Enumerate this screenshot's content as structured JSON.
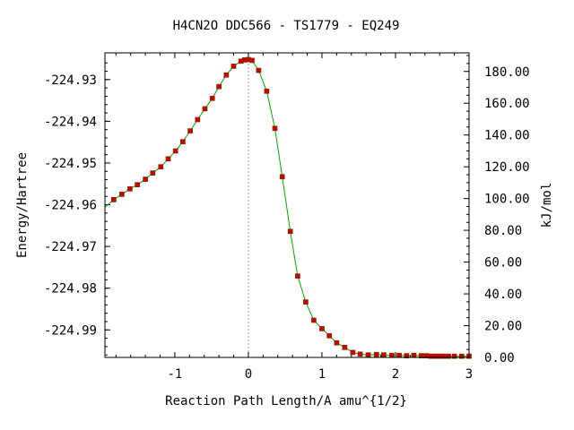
{
  "chart_data": {
    "type": "line",
    "title": "H4CN2O   DDC566 - TS1779 - EQ249",
    "xlabel": "Reaction Path Length/A amu^{1/2}",
    "ylabel": "Energy/Hartree",
    "ylabel_right": "kJ/mol",
    "xlim": [
      -1.95,
      3.0
    ],
    "ylim": [
      -224.9966,
      -224.9236
    ],
    "ylim_right": [
      0,
      191.7
    ],
    "x_ticks": [
      {
        "value": -1,
        "label": "-1"
      },
      {
        "value": 0,
        "label": "0"
      },
      {
        "value": 1,
        "label": "1"
      },
      {
        "value": 2,
        "label": "2"
      },
      {
        "value": 3,
        "label": "3"
      }
    ],
    "y_ticks": [
      {
        "value": -224.93,
        "label": "-224.93"
      },
      {
        "value": -224.94,
        "label": "-224.94"
      },
      {
        "value": -224.95,
        "label": "-224.95"
      },
      {
        "value": -224.96,
        "label": "-224.96"
      },
      {
        "value": -224.97,
        "label": "-224.97"
      },
      {
        "value": -224.98,
        "label": "-224.98"
      },
      {
        "value": -224.99,
        "label": "-224.99"
      }
    ],
    "y_ticks_right": [
      {
        "value": 0,
        "label": "0.00"
      },
      {
        "value": 20,
        "label": "20.00"
      },
      {
        "value": 40,
        "label": "40.00"
      },
      {
        "value": 60,
        "label": "60.00"
      },
      {
        "value": 80,
        "label": "80.00"
      },
      {
        "value": 100,
        "label": "100.00"
      },
      {
        "value": 120,
        "label": "120.00"
      },
      {
        "value": 140,
        "label": "140.00"
      },
      {
        "value": 160,
        "label": "160.00"
      },
      {
        "value": 180,
        "label": "180.00"
      }
    ],
    "ts_x": 0,
    "grid": false,
    "colors": {
      "line": "#00aa00",
      "marker_fill": "#cc0000",
      "marker_edge": "#7a3300",
      "ts_line": "#999999"
    },
    "series": [
      {
        "x": [
          -1.95,
          -1.83,
          -1.72,
          -1.61,
          -1.51,
          -1.4,
          -1.3,
          -1.19,
          -1.09,
          -0.99,
          -0.89,
          -0.79,
          -0.69,
          -0.59,
          -0.49,
          -0.4,
          -0.3,
          -0.2,
          -0.1,
          -0.05,
          0.0,
          0.05,
          0.14,
          0.25,
          0.36,
          0.46,
          0.57,
          0.67,
          0.78,
          0.89,
          1.0,
          1.1,
          1.2,
          1.31,
          1.42,
          1.52,
          1.63,
          1.74,
          1.84,
          1.95,
          2.05,
          2.15,
          2.25,
          2.35,
          2.42,
          2.48,
          2.54,
          2.6,
          2.65,
          2.72,
          2.8,
          2.9,
          3.0
        ],
        "y": [
          -224.9606,
          -224.9588,
          -224.9575,
          -224.9562,
          -224.9552,
          -224.9539,
          -224.9524,
          -224.9509,
          -224.949,
          -224.9471,
          -224.9449,
          -224.9423,
          -224.9396,
          -224.937,
          -224.9345,
          -224.9317,
          -224.9289,
          -224.9268,
          -224.9256,
          -224.9253,
          -224.9252,
          -224.9254,
          -224.9278,
          -224.9328,
          -224.9417,
          -224.9533,
          -224.9664,
          -224.9771,
          -224.9833,
          -224.9877,
          -224.9897,
          -224.9914,
          -224.9931,
          -224.9942,
          -224.9954,
          -224.9958,
          -224.996,
          -224.9959,
          -224.996,
          -224.9961,
          -224.9961,
          -224.9962,
          -224.9961,
          -224.9962,
          -224.9962,
          -224.9963,
          -224.9963,
          -224.9963,
          -224.9963,
          -224.9963,
          -224.9963,
          -224.9963,
          -224.9963
        ]
      }
    ]
  }
}
